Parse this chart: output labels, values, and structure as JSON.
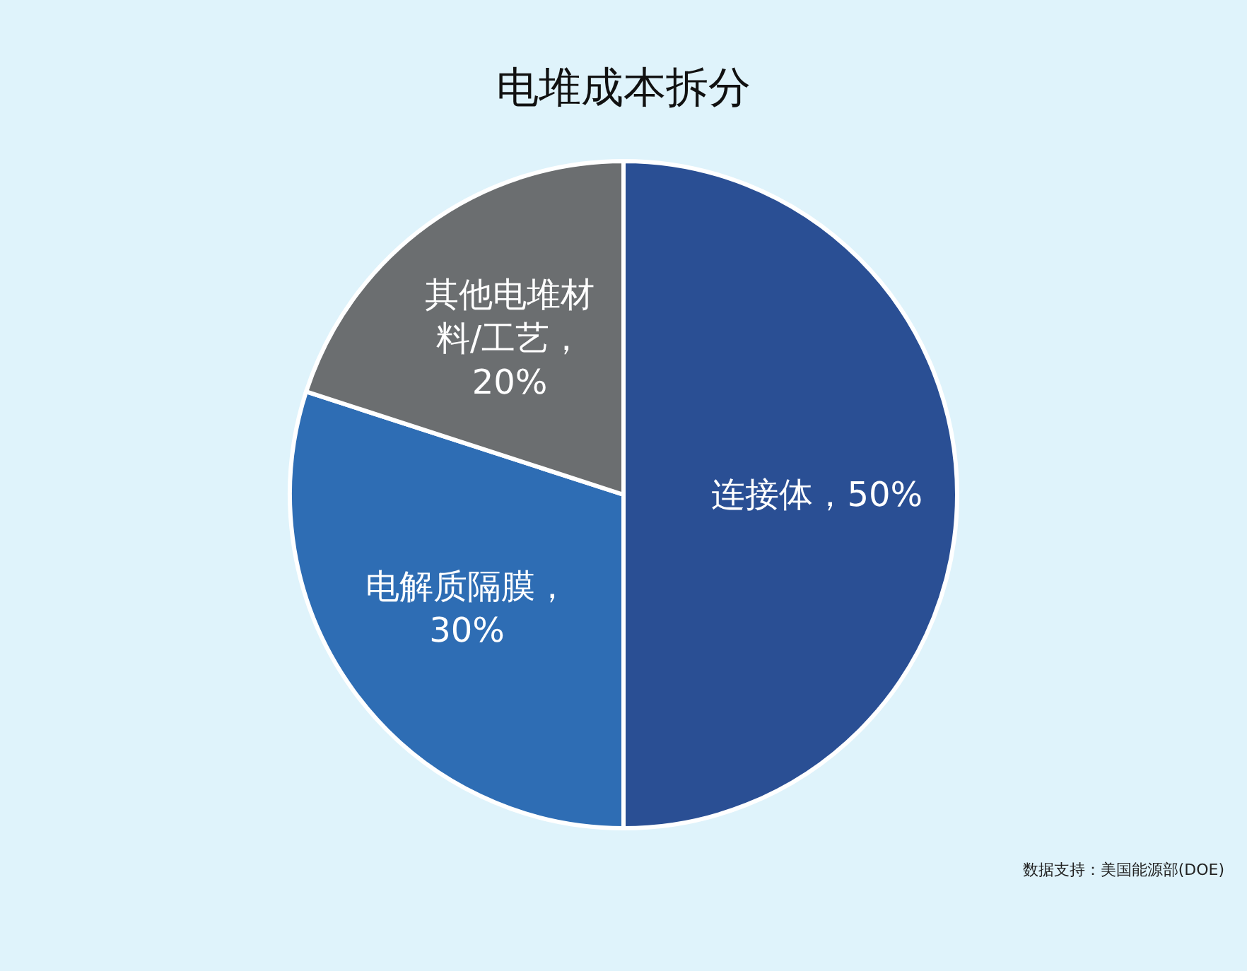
{
  "chart_data": {
    "type": "pie",
    "title": "电堆成本拆分",
    "categories": [
      "连接体",
      "电解质隔膜",
      "其他电堆材料/工艺"
    ],
    "values": [
      50,
      30,
      20
    ],
    "colors": [
      "#2a4f94",
      "#2e6db4",
      "#6b6e70"
    ],
    "value_labels": [
      "，50%",
      "，30%",
      "，20%"
    ],
    "annotations": [
      "数据支持：美国能源部(DOE)"
    ]
  }
}
